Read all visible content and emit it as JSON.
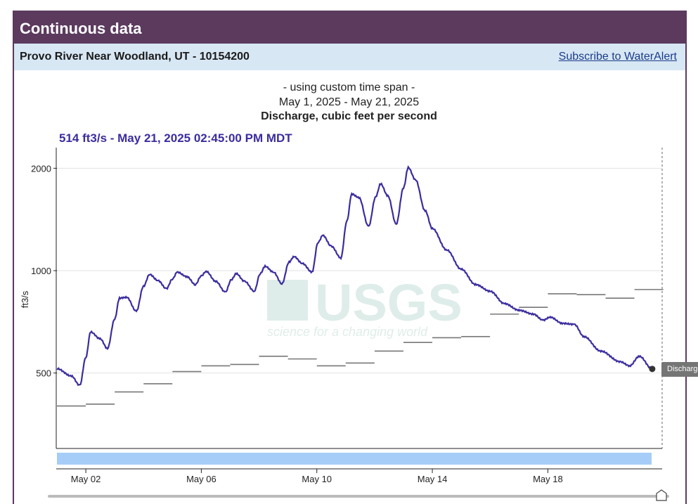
{
  "panel": {
    "title": "Continuous data"
  },
  "site": {
    "name": "Provo River Near Woodland, UT - 10154200",
    "subscribe_label": "Subscribe to WaterAlert"
  },
  "chart_header": {
    "span_note": "- using custom time span -",
    "date_range": "May 1, 2025 - May 21, 2025",
    "parameter": "Discharge, cubic feet per second",
    "current_reading": "514 ft3/s - May 21, 2025 02:45:00 PM MDT"
  },
  "watermark": {
    "text": "USGS",
    "tagline": "science for a changing world"
  },
  "tooltip": {
    "label": "Discharge"
  },
  "colors": {
    "discharge": "#3b2d9e",
    "median": "#777777",
    "brush": "#a6cdf7",
    "header": "#5b3a5e"
  },
  "chart_data": {
    "type": "line",
    "ylabel": "ft3/s",
    "y_scale": "log",
    "ylim": [
      300,
      2300
    ],
    "xlim": [
      "2025-05-01T00:00",
      "2025-05-21T23:00"
    ],
    "y_ticks": [
      500,
      1000,
      2000
    ],
    "x_ticks": [
      {
        "label": "May 02",
        "date": "2025-05-02"
      },
      {
        "label": "May 06",
        "date": "2025-05-06"
      },
      {
        "label": "May 10",
        "date": "2025-05-10"
      },
      {
        "label": "May 14",
        "date": "2025-05-14"
      },
      {
        "label": "May 18",
        "date": "2025-05-18"
      }
    ],
    "grid": true,
    "series": [
      {
        "name": "Discharge",
        "points": [
          [
            "2025-05-01T00:00",
            515
          ],
          [
            "2025-05-01T12:00",
            490
          ],
          [
            "2025-05-01T19:00",
            460
          ],
          [
            "2025-05-02T00:00",
            555
          ],
          [
            "2025-05-02T04:00",
            660
          ],
          [
            "2025-05-02T12:00",
            630
          ],
          [
            "2025-05-02T18:00",
            590
          ],
          [
            "2025-05-03T00:00",
            720
          ],
          [
            "2025-05-03T04:00",
            830
          ],
          [
            "2025-05-03T10:00",
            835
          ],
          [
            "2025-05-03T18:00",
            760
          ],
          [
            "2025-05-04T00:00",
            900
          ],
          [
            "2025-05-04T05:00",
            975
          ],
          [
            "2025-05-04T12:00",
            935
          ],
          [
            "2025-05-04T19:00",
            885
          ],
          [
            "2025-05-05T00:00",
            945
          ],
          [
            "2025-05-05T04:00",
            990
          ],
          [
            "2025-05-05T12:00",
            960
          ],
          [
            "2025-05-05T19:00",
            910
          ],
          [
            "2025-05-06T00:00",
            965
          ],
          [
            "2025-05-06T04:00",
            995
          ],
          [
            "2025-05-06T12:00",
            930
          ],
          [
            "2025-05-06T20:00",
            865
          ],
          [
            "2025-05-07T01:00",
            940
          ],
          [
            "2025-05-07T05:00",
            980
          ],
          [
            "2025-05-07T12:00",
            930
          ],
          [
            "2025-05-07T20:00",
            870
          ],
          [
            "2025-05-08T01:00",
            980
          ],
          [
            "2025-05-08T05:00",
            1030
          ],
          [
            "2025-05-08T12:00",
            990
          ],
          [
            "2025-05-08T19:00",
            915
          ],
          [
            "2025-05-09T01:00",
            1060
          ],
          [
            "2025-05-09T05:00",
            1100
          ],
          [
            "2025-05-09T12:00",
            1050
          ],
          [
            "2025-05-09T20:00",
            990
          ],
          [
            "2025-05-10T01:00",
            1210
          ],
          [
            "2025-05-10T05:00",
            1270
          ],
          [
            "2025-05-10T12:00",
            1180
          ],
          [
            "2025-05-10T20:00",
            1090
          ],
          [
            "2025-05-11T01:00",
            1400
          ],
          [
            "2025-05-11T05:00",
            1680
          ],
          [
            "2025-05-11T11:00",
            1640
          ],
          [
            "2025-05-11T19:00",
            1350
          ],
          [
            "2025-05-12T01:00",
            1650
          ],
          [
            "2025-05-12T05:00",
            1800
          ],
          [
            "2025-05-12T11:00",
            1660
          ],
          [
            "2025-05-12T18:00",
            1370
          ],
          [
            "2025-05-13T00:00",
            1750
          ],
          [
            "2025-05-13T04:00",
            2010
          ],
          [
            "2025-05-13T10:00",
            1850
          ],
          [
            "2025-05-13T18:00",
            1500
          ],
          [
            "2025-05-14T00:00",
            1330
          ],
          [
            "2025-05-14T12:00",
            1150
          ],
          [
            "2025-05-15T00:00",
            1010
          ],
          [
            "2025-05-15T12:00",
            910
          ],
          [
            "2025-05-16T00:00",
            870
          ],
          [
            "2025-05-16T12:00",
            800
          ],
          [
            "2025-05-17T00:00",
            765
          ],
          [
            "2025-05-17T12:00",
            745
          ],
          [
            "2025-05-17T20:00",
            715
          ],
          [
            "2025-05-18T02:00",
            730
          ],
          [
            "2025-05-18T12:00",
            700
          ],
          [
            "2025-05-18T22:00",
            695
          ],
          [
            "2025-05-19T06:00",
            640
          ],
          [
            "2025-05-19T20:00",
            580
          ],
          [
            "2025-05-20T12:00",
            540
          ],
          [
            "2025-05-20T20:00",
            525
          ],
          [
            "2025-05-21T04:00",
            560
          ],
          [
            "2025-05-21T14:45",
            514
          ]
        ]
      },
      {
        "name": "Median",
        "days": [
          "2025-05-01",
          "2025-05-02",
          "2025-05-03",
          "2025-05-04",
          "2025-05-05",
          "2025-05-06",
          "2025-05-07",
          "2025-05-08",
          "2025-05-09",
          "2025-05-10",
          "2025-05-11",
          "2025-05-12",
          "2025-05-13",
          "2025-05-14",
          "2025-05-15",
          "2025-05-16",
          "2025-05-17",
          "2025-05-18",
          "2025-05-19",
          "2025-05-20",
          "2025-05-21"
        ],
        "values": [
          400,
          405,
          440,
          465,
          505,
          525,
          530,
          560,
          550,
          525,
          535,
          580,
          615,
          635,
          640,
          745,
          780,
          855,
          850,
          830,
          880
        ]
      }
    ]
  }
}
